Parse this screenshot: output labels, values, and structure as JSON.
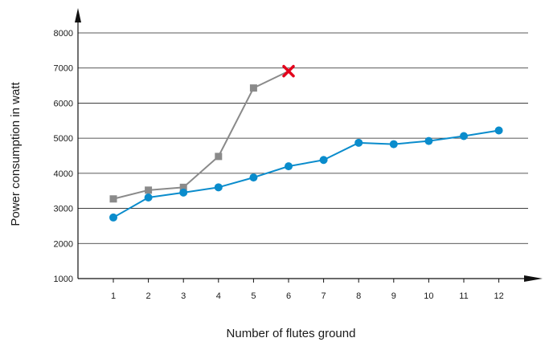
{
  "chart_data": {
    "type": "line",
    "title": "",
    "xlabel": "Number of flutes ground",
    "ylabel": "Power consumption in watt",
    "x": [
      1,
      2,
      3,
      4,
      5,
      6,
      7,
      8,
      9,
      10,
      11,
      12
    ],
    "ylim": [
      1000,
      8000
    ],
    "yticks": [
      1000,
      2000,
      3000,
      4000,
      5000,
      6000,
      7000,
      8000
    ],
    "grid": true,
    "legend": "none",
    "series": [
      {
        "color": "#8a8a8a",
        "marker": "square",
        "x": [
          1,
          2,
          3,
          4,
          5,
          6
        ],
        "values": [
          3270,
          3520,
          3600,
          4480,
          6430,
          6910
        ],
        "end_marker": "x-cross",
        "end_marker_color": "#e3001b"
      },
      {
        "color": "#0a8ccc",
        "marker": "circle",
        "x": [
          1,
          2,
          3,
          4,
          5,
          6,
          7,
          8,
          9,
          10,
          11,
          12
        ],
        "values": [
          2740,
          3310,
          3450,
          3600,
          3880,
          4200,
          4380,
          4870,
          4830,
          4920,
          5060,
          5220
        ]
      }
    ]
  }
}
